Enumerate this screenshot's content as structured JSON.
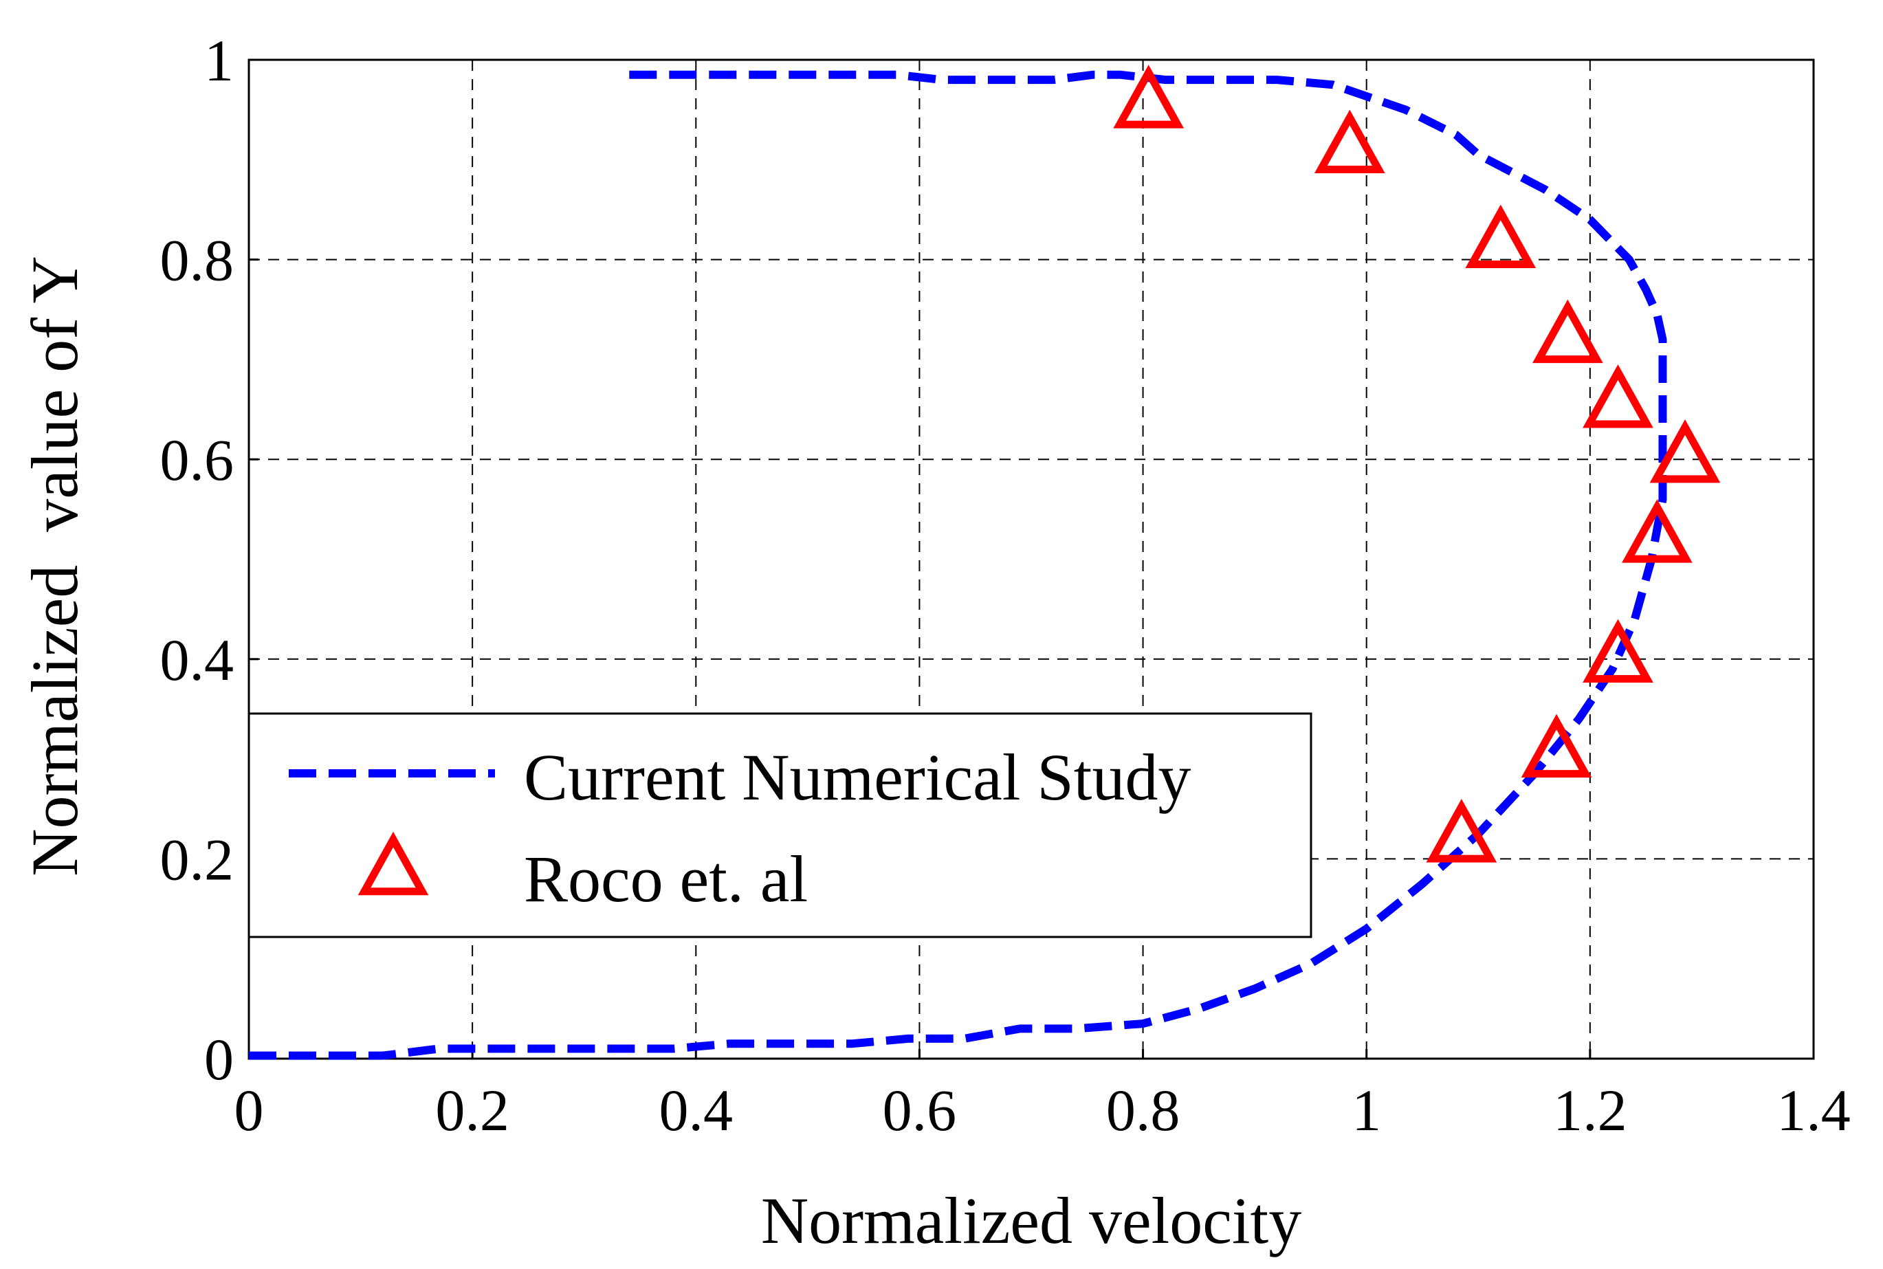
{
  "chart_data": {
    "type": "line",
    "title": "",
    "xlabel": "Normalized velocity",
    "ylabel": "Normalized  value of Y",
    "xlim": [
      0,
      1.4
    ],
    "ylim": [
      0,
      1
    ],
    "x_ticks": [
      "0",
      "0.2",
      "0.4",
      "0.6",
      "0.8",
      "1",
      "1.2",
      "1.4"
    ],
    "y_ticks": [
      "0",
      "0.2",
      "0.4",
      "0.6",
      "0.8",
      "1"
    ],
    "grid": true,
    "legend_position": "lower-left",
    "series": [
      {
        "name": "Current Numerical Study",
        "style": "dashed-line",
        "color": "#0000ff",
        "x": [
          0,
          0.12,
          0.17,
          0.2,
          0.3,
          0.38,
          0.43,
          0.54,
          0.59,
          0.64,
          0.69,
          0.74,
          0.8,
          0.85,
          0.9,
          0.95,
          1.0,
          1.05,
          1.1,
          1.15,
          1.19,
          1.22,
          1.24,
          1.255,
          1.265,
          1.265,
          1.26,
          1.25,
          1.235,
          1.2,
          1.16,
          1.1,
          1.08,
          1.035,
          0.97,
          0.92,
          0.82,
          0.78,
          0.755,
          0.72,
          0.69,
          0.62,
          0.58,
          0.5,
          0.42,
          0.33
        ],
        "y": [
          0.003,
          0.003,
          0.01,
          0.01,
          0.01,
          0.01,
          0.015,
          0.015,
          0.02,
          0.02,
          0.03,
          0.03,
          0.035,
          0.05,
          0.07,
          0.095,
          0.13,
          0.175,
          0.225,
          0.285,
          0.34,
          0.39,
          0.44,
          0.5,
          0.56,
          0.72,
          0.745,
          0.77,
          0.8,
          0.84,
          0.87,
          0.905,
          0.925,
          0.95,
          0.975,
          0.98,
          0.98,
          0.985,
          0.985,
          0.98,
          0.98,
          0.98,
          0.985,
          0.985,
          0.985,
          0.985
        ]
      },
      {
        "name": "Roco et. al",
        "style": "triangle-markers",
        "color": "#ff0000",
        "x": [
          0.805,
          0.985,
          1.12,
          1.18,
          1.225,
          1.285,
          1.26,
          1.225,
          1.17,
          1.085
        ],
        "y": [
          0.955,
          0.91,
          0.815,
          0.72,
          0.655,
          0.6,
          0.52,
          0.4,
          0.305,
          0.22
        ]
      }
    ]
  }
}
